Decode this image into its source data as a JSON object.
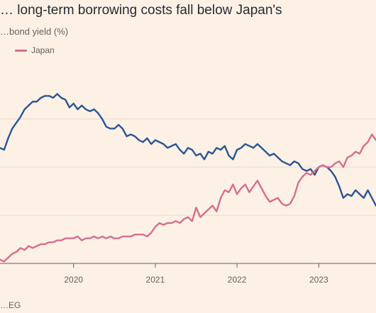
{
  "title": "… long-term borrowing costs fall below Japan's",
  "subtitle": "…bond yield (%)",
  "legend": {
    "japan_label": "Japan"
  },
  "source": "…EG",
  "colors": {
    "background": "#fdf1e6",
    "series_a": "#2a5596",
    "japan": "#d76d8e",
    "grid": "#e8dbcf",
    "axis": "#66605c"
  },
  "chart_data": {
    "type": "line",
    "xlabel": "",
    "ylabel": "",
    "x_ticks": [
      "2020",
      "2021",
      "2022",
      "2023"
    ],
    "x_tick_years": [
      2020,
      2021,
      2022,
      2023
    ],
    "xlim": [
      2019.1,
      2023.7
    ],
    "ylim": [
      0,
      1
    ],
    "grid": true,
    "legend_position": "top-left",
    "series": [
      {
        "key": "series_a",
        "x": [
          2019.1,
          2019.15,
          2019.2,
          2019.25,
          2019.3,
          2019.35,
          2019.4,
          2019.45,
          2019.5,
          2019.55,
          2019.6,
          2019.65,
          2019.7,
          2019.75,
          2019.8,
          2019.85,
          2019.9,
          2019.95,
          2020.0,
          2020.05,
          2020.1,
          2020.15,
          2020.2,
          2020.25,
          2020.3,
          2020.35,
          2020.4,
          2020.45,
          2020.5,
          2020.55,
          2020.6,
          2020.65,
          2020.7,
          2020.75,
          2020.8,
          2020.85,
          2020.9,
          2020.95,
          2021.0,
          2021.05,
          2021.1,
          2021.15,
          2021.2,
          2021.25,
          2021.3,
          2021.35,
          2021.4,
          2021.45,
          2021.5,
          2021.55,
          2021.6,
          2021.65,
          2021.7,
          2021.75,
          2021.8,
          2021.85,
          2021.9,
          2021.95,
          2022.0,
          2022.05,
          2022.1,
          2022.15,
          2022.2,
          2022.25,
          2022.3,
          2022.35,
          2022.4,
          2022.45,
          2022.5,
          2022.55,
          2022.6,
          2022.65,
          2022.7,
          2022.75,
          2022.8,
          2022.85,
          2022.9,
          2022.95,
          2023.0,
          2023.05,
          2023.1,
          2023.15,
          2023.2,
          2023.25,
          2023.3,
          2023.35,
          2023.4,
          2023.45,
          2023.5,
          2023.55,
          2023.6,
          2023.65,
          2023.7
        ],
        "values": [
          0.6,
          0.59,
          0.65,
          0.7,
          0.73,
          0.76,
          0.8,
          0.82,
          0.84,
          0.84,
          0.86,
          0.87,
          0.87,
          0.86,
          0.88,
          0.86,
          0.85,
          0.81,
          0.83,
          0.8,
          0.82,
          0.8,
          0.79,
          0.8,
          0.78,
          0.75,
          0.71,
          0.7,
          0.7,
          0.72,
          0.7,
          0.66,
          0.67,
          0.66,
          0.64,
          0.63,
          0.65,
          0.62,
          0.64,
          0.63,
          0.62,
          0.6,
          0.61,
          0.62,
          0.59,
          0.57,
          0.6,
          0.59,
          0.56,
          0.57,
          0.54,
          0.58,
          0.57,
          0.6,
          0.59,
          0.61,
          0.56,
          0.54,
          0.59,
          0.6,
          0.62,
          0.61,
          0.6,
          0.62,
          0.6,
          0.58,
          0.56,
          0.57,
          0.55,
          0.53,
          0.52,
          0.51,
          0.53,
          0.52,
          0.49,
          0.48,
          0.49,
          0.46,
          0.5,
          0.51,
          0.5,
          0.48,
          0.45,
          0.4,
          0.34,
          0.36,
          0.35,
          0.38,
          0.36,
          0.34,
          0.38,
          0.34,
          0.3
        ]
      },
      {
        "key": "japan",
        "name": "Japan",
        "x": [
          2019.1,
          2019.15,
          2019.2,
          2019.25,
          2019.3,
          2019.35,
          2019.4,
          2019.45,
          2019.5,
          2019.55,
          2019.6,
          2019.65,
          2019.7,
          2019.75,
          2019.8,
          2019.85,
          2019.9,
          2019.95,
          2020.0,
          2020.05,
          2020.1,
          2020.15,
          2020.2,
          2020.25,
          2020.3,
          2020.35,
          2020.4,
          2020.45,
          2020.5,
          2020.55,
          2020.6,
          2020.65,
          2020.7,
          2020.75,
          2020.8,
          2020.85,
          2020.9,
          2020.95,
          2021.0,
          2021.05,
          2021.1,
          2021.15,
          2021.2,
          2021.25,
          2021.3,
          2021.35,
          2021.4,
          2021.45,
          2021.5,
          2021.55,
          2021.6,
          2021.65,
          2021.7,
          2021.75,
          2021.8,
          2021.85,
          2021.9,
          2021.95,
          2022.0,
          2022.05,
          2022.1,
          2022.15,
          2022.2,
          2022.25,
          2022.3,
          2022.35,
          2022.4,
          2022.45,
          2022.5,
          2022.55,
          2022.6,
          2022.65,
          2022.7,
          2022.75,
          2022.8,
          2022.85,
          2022.9,
          2022.95,
          2023.0,
          2023.05,
          2023.1,
          2023.15,
          2023.2,
          2023.25,
          2023.3,
          2023.35,
          2023.4,
          2023.45,
          2023.5,
          2023.55,
          2023.6,
          2023.65,
          2023.7
        ],
        "values": [
          0.02,
          0.01,
          0.03,
          0.05,
          0.06,
          0.08,
          0.07,
          0.09,
          0.08,
          0.09,
          0.1,
          0.1,
          0.11,
          0.11,
          0.12,
          0.12,
          0.13,
          0.13,
          0.13,
          0.14,
          0.12,
          0.13,
          0.13,
          0.14,
          0.13,
          0.14,
          0.13,
          0.14,
          0.13,
          0.13,
          0.14,
          0.14,
          0.14,
          0.15,
          0.15,
          0.15,
          0.14,
          0.16,
          0.19,
          0.21,
          0.2,
          0.21,
          0.21,
          0.22,
          0.21,
          0.23,
          0.24,
          0.22,
          0.29,
          0.24,
          0.26,
          0.28,
          0.3,
          0.27,
          0.34,
          0.38,
          0.37,
          0.41,
          0.36,
          0.39,
          0.41,
          0.37,
          0.4,
          0.43,
          0.39,
          0.35,
          0.32,
          0.33,
          0.34,
          0.31,
          0.3,
          0.31,
          0.35,
          0.42,
          0.45,
          0.47,
          0.46,
          0.48,
          0.5,
          0.51,
          0.5,
          0.5,
          0.52,
          0.53,
          0.5,
          0.55,
          0.56,
          0.58,
          0.57,
          0.61,
          0.63,
          0.67,
          0.64
        ]
      }
    ]
  }
}
